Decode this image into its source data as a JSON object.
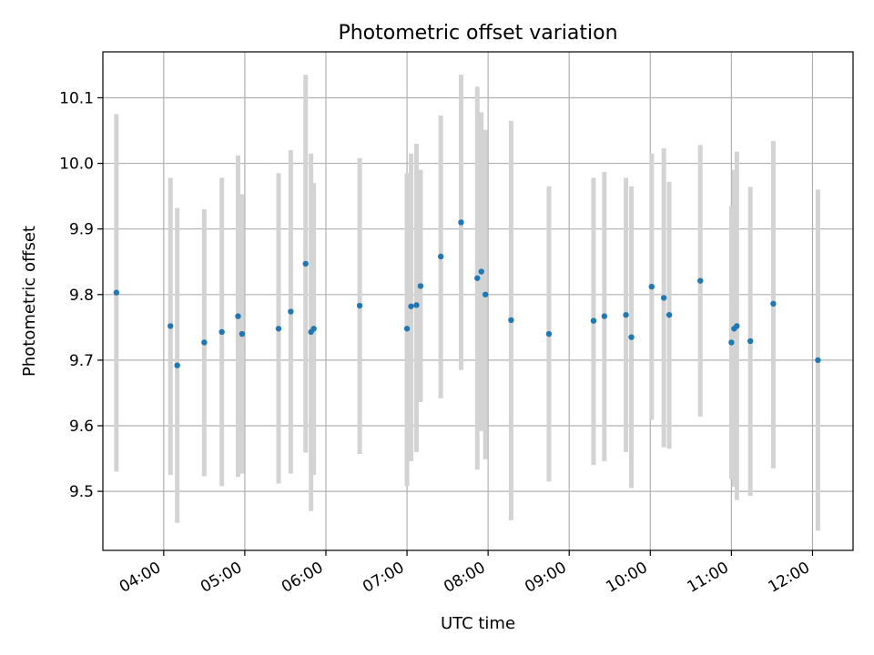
{
  "chart_data": {
    "type": "scatter",
    "title": "Photometric offset variation",
    "xlabel": "UTC time",
    "ylabel": "Photometric offset",
    "grid": true,
    "xlim": [
      "03:15",
      "12:30"
    ],
    "ylim": [
      9.41,
      10.17
    ],
    "x_ticks": [
      "04:00",
      "05:00",
      "06:00",
      "07:00",
      "08:00",
      "09:00",
      "10:00",
      "11:00",
      "12:00"
    ],
    "y_ticks": [
      9.5,
      9.6,
      9.7,
      9.8,
      9.9,
      10.0,
      10.1
    ],
    "colors": {
      "point": "#1f77b4",
      "errorbar": "#d3d3d3"
    },
    "series": [
      {
        "points": [
          {
            "x": "03:25",
            "y": 9.803,
            "low": 9.53,
            "high": 10.075
          },
          {
            "x": "04:05",
            "y": 9.752,
            "low": 9.525,
            "high": 9.978
          },
          {
            "x": "04:10",
            "y": 9.692,
            "low": 9.452,
            "high": 9.932
          },
          {
            "x": "04:30",
            "y": 9.727,
            "low": 9.523,
            "high": 9.93
          },
          {
            "x": "04:43",
            "y": 9.743,
            "low": 9.508,
            "high": 9.978
          },
          {
            "x": "04:55",
            "y": 9.767,
            "low": 9.522,
            "high": 10.012
          },
          {
            "x": "04:58",
            "y": 9.74,
            "low": 9.527,
            "high": 9.953
          },
          {
            "x": "05:25",
            "y": 9.748,
            "low": 9.512,
            "high": 9.985
          },
          {
            "x": "05:34",
            "y": 9.774,
            "low": 9.527,
            "high": 10.02
          },
          {
            "x": "05:45",
            "y": 9.847,
            "low": 9.559,
            "high": 10.135
          },
          {
            "x": "05:49",
            "y": 9.743,
            "low": 9.47,
            "high": 10.015
          },
          {
            "x": "05:51",
            "y": 9.748,
            "low": 9.525,
            "high": 9.97
          },
          {
            "x": "06:25",
            "y": 9.783,
            "low": 9.557,
            "high": 10.008
          },
          {
            "x": "07:00",
            "y": 9.748,
            "low": 9.508,
            "high": 9.985
          },
          {
            "x": "07:03",
            "y": 9.782,
            "low": 9.546,
            "high": 10.015
          },
          {
            "x": "07:07",
            "y": 9.784,
            "low": 9.56,
            "high": 10.03
          },
          {
            "x": "07:10",
            "y": 9.813,
            "low": 9.636,
            "high": 9.99
          },
          {
            "x": "07:25",
            "y": 9.858,
            "low": 9.642,
            "high": 10.073
          },
          {
            "x": "07:40",
            "y": 9.91,
            "low": 9.685,
            "high": 10.135
          },
          {
            "x": "07:52",
            "y": 9.825,
            "low": 9.533,
            "high": 10.117
          },
          {
            "x": "07:55",
            "y": 9.835,
            "low": 9.592,
            "high": 10.078
          },
          {
            "x": "07:58",
            "y": 9.8,
            "low": 9.549,
            "high": 10.051
          },
          {
            "x": "08:17",
            "y": 9.761,
            "low": 9.456,
            "high": 10.065
          },
          {
            "x": "08:45",
            "y": 9.74,
            "low": 9.515,
            "high": 9.965
          },
          {
            "x": "09:18",
            "y": 9.76,
            "low": 9.54,
            "high": 9.978
          },
          {
            "x": "09:26",
            "y": 9.767,
            "low": 9.546,
            "high": 9.987
          },
          {
            "x": "09:42",
            "y": 9.769,
            "low": 9.56,
            "high": 9.978
          },
          {
            "x": "09:46",
            "y": 9.735,
            "low": 9.505,
            "high": 9.965
          },
          {
            "x": "10:01",
            "y": 9.812,
            "low": 9.609,
            "high": 10.015
          },
          {
            "x": "10:10",
            "y": 9.795,
            "low": 9.567,
            "high": 10.023
          },
          {
            "x": "10:14",
            "y": 9.769,
            "low": 9.565,
            "high": 9.972
          },
          {
            "x": "10:37",
            "y": 9.821,
            "low": 9.614,
            "high": 10.028
          },
          {
            "x": "11:00",
            "y": 9.727,
            "low": 9.519,
            "high": 9.935
          },
          {
            "x": "11:02",
            "y": 9.748,
            "low": 9.507,
            "high": 9.99
          },
          {
            "x": "11:04",
            "y": 9.752,
            "low": 9.487,
            "high": 10.018
          },
          {
            "x": "11:14",
            "y": 9.729,
            "low": 9.493,
            "high": 9.964
          },
          {
            "x": "11:31",
            "y": 9.786,
            "low": 9.535,
            "high": 10.034
          },
          {
            "x": "12:04",
            "y": 9.7,
            "low": 9.44,
            "high": 9.96
          }
        ]
      }
    ]
  }
}
